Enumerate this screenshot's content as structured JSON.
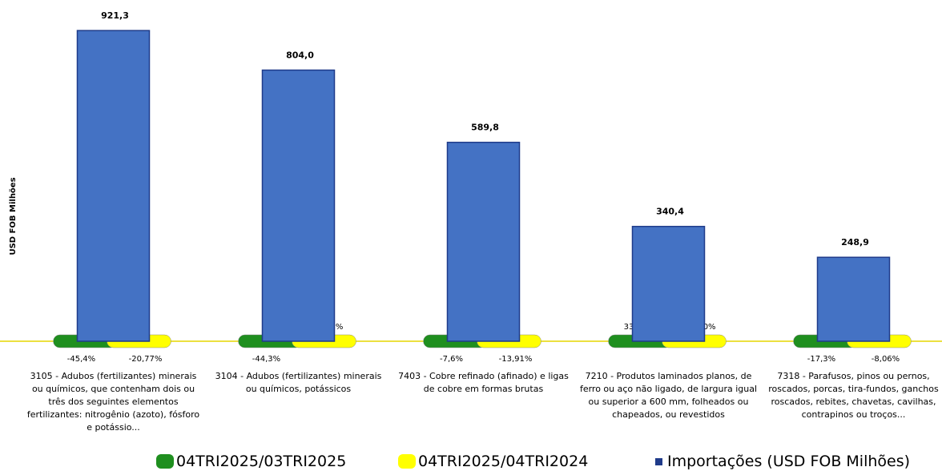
{
  "chart_data": {
    "type": "bar",
    "y_label": "USD FOB Milhões",
    "categories": [
      "3105 - Adubos (fertilizantes) minerais ou químicos, que contenham dois ou três dos seguintes elementos fertilizantes: nitrogênio (azoto), fósforo e potássio...",
      "3104 - Adubos (fertilizantes) minerais ou químicos, potássicos",
      "7403 - Cobre refinado (afinado) e ligas de cobre em formas brutas",
      "7210 - Produtos laminados planos, de ferro ou aço não ligado, de largura igual ou superior a 600 mm, folheados ou chapeados, ou revestidos",
      "7318 - Parafusos, pinos ou pernos, roscados, porcas, tira-fundos, ganchos roscados, rebites, chavetas, cavilhas, contrapinos ou troços..."
    ],
    "ylim": [
      0,
      1000
    ],
    "legend": "bottom",
    "series": [
      {
        "name": "04TRI2025/03TRI2025",
        "color": "#1f8f1f",
        "kind": "pill",
        "values": [
          -45.4,
          -44.3,
          -7.6,
          33.5,
          -17.3
        ],
        "value_labels": [
          "-45,4%",
          "-44,3%",
          "-7,6%",
          "33,5%",
          "-17,3%"
        ]
      },
      {
        "name": "04TRI2025/04TRI2024",
        "color": "#ffff00",
        "kind": "pill",
        "values": [
          -20.77,
          4.07,
          -13.91,
          19.1,
          -8.06
        ],
        "value_labels": [
          "-20,77%",
          "4,07%",
          "-13,91%",
          "19,10%",
          "-8,06%"
        ]
      },
      {
        "name": "Importações (USD FOB Milhões)",
        "color": "#4472c4",
        "kind": "bar",
        "values": [
          921.3,
          804.0,
          589.8,
          340.4,
          248.9
        ],
        "value_labels": [
          "921,3",
          "804,0",
          "589,8",
          "340,4",
          "248,9"
        ]
      }
    ]
  }
}
